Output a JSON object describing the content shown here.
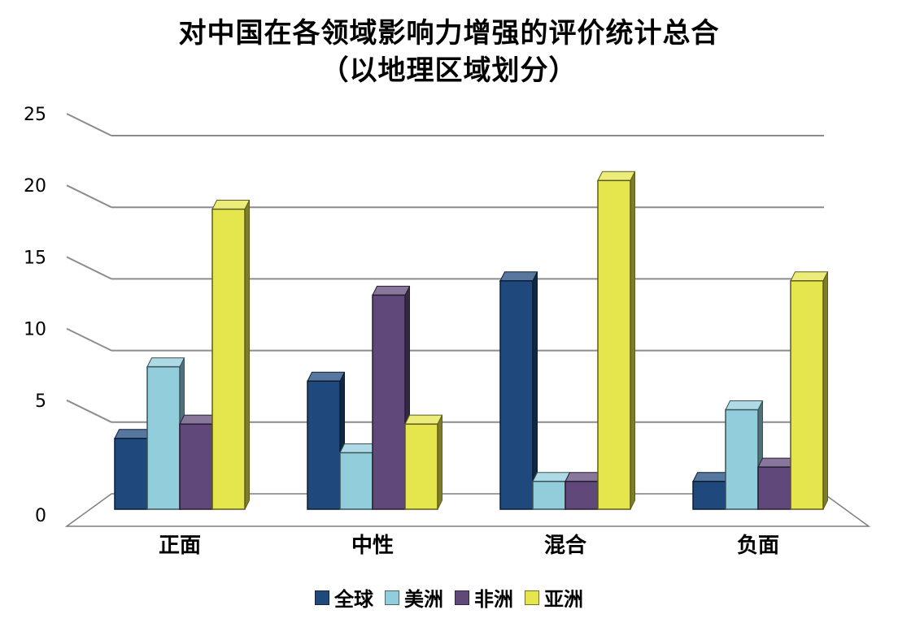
{
  "chart_data": {
    "type": "bar",
    "title": [
      "对中国在各领域影响力增强的评价统计总合",
      "（以地理区域划分）"
    ],
    "categories": [
      "正面",
      "中性",
      "混合",
      "负面"
    ],
    "series": [
      {
        "name": "全球",
        "values": [
          5,
          9,
          16,
          2
        ],
        "color": "#1f497d"
      },
      {
        "name": "美洲",
        "values": [
          10,
          4,
          2,
          7
        ],
        "color": "#92cddc"
      },
      {
        "name": "非洲",
        "values": [
          6,
          15,
          2,
          3
        ],
        "color": "#60497a"
      },
      {
        "name": "亚洲",
        "values": [
          21,
          6,
          23,
          16
        ],
        "color": "#e5e54d"
      }
    ],
    "ylim": [
      0,
      25
    ],
    "yticks": [
      0,
      5,
      10,
      15,
      20,
      25
    ],
    "grid": true,
    "legend_position": "bottom",
    "style": "3d-clustered-column"
  }
}
